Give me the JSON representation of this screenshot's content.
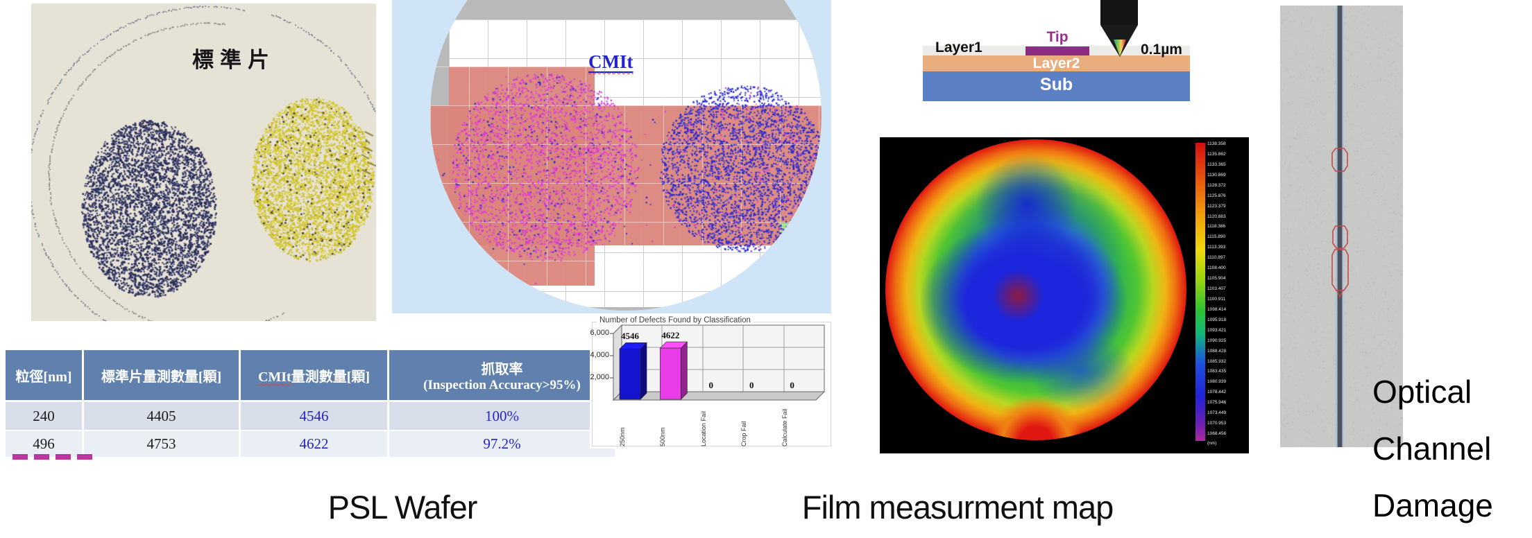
{
  "colors": {
    "table_header_bg": "#6080ae",
    "panel_light_blue": "#cfe4f6",
    "wafer_gray": "#b9b9b9",
    "scan_salmon": "#da867c",
    "scan_green": "#a5e395",
    "magenta_defect": "#e03ddd",
    "blue_defect": "#2626cf",
    "tip_purple": "#8e2b85",
    "layer2_tan": "#e9ad7e",
    "sub_blue": "#5b80c6"
  },
  "psl_photo": {
    "label": "標準片"
  },
  "cmit_map": {
    "title": "CMIt"
  },
  "comparison_table": {
    "col1": "粒徑[nm]",
    "col2": "標準片量測數量[顆]",
    "col3_em": "CMIt",
    "col3_rest": "量測數量[顆]",
    "col4_line1": "抓取率",
    "col4_line2": "(Inspection Accuracy>95%)",
    "rows": [
      {
        "cells": [
          "240",
          "4405",
          "4546",
          "100%"
        ]
      },
      {
        "cells": [
          "496",
          "4753",
          "4622",
          "97.2%"
        ]
      }
    ]
  },
  "chart_data": [
    {
      "type": "bar",
      "title": "Number of Defects Found by Classification",
      "categories": [
        "250nm",
        "500nm",
        "Location Fail",
        "Crop Fail",
        "Calculate Fail"
      ],
      "values": [
        4546,
        4622,
        0,
        0,
        0
      ],
      "value_labels": [
        "4546",
        "4622",
        "0",
        "0",
        "0"
      ],
      "ytick_labels": [
        "6,000",
        "4,000",
        "2,000"
      ],
      "ylim": [
        0,
        6000
      ],
      "bar_colors": [
        "#1515cf",
        "#e83ce8"
      ],
      "style": "3d-bar",
      "legend": "none"
    },
    {
      "type": "heatmap",
      "title": "Film measurment map",
      "shape": "wafer-circle",
      "palette": "rainbow-high-red-low-purple",
      "colorbar_ticks": [
        "1138.358",
        "1135.862",
        "1133.365",
        "1130.869",
        "1128.372",
        "1125.876",
        "1123.379",
        "1120.883",
        "1118.386",
        "1115.890",
        "1113.393",
        "1110.897",
        "1108.400",
        "1105.904",
        "1103.407",
        "1100.911",
        "1098.414",
        "1095.918",
        "1093.421",
        "1090.925",
        "1088.428",
        "1085.932",
        "1083.435",
        "1080.939",
        "1078.442",
        "1075.946",
        "1073.449",
        "1070.953",
        "1068.456"
      ],
      "colorbar_unit": "(nm)"
    }
  ],
  "tip_diagram": {
    "layer1": "Layer1",
    "tip": "Tip",
    "thickness": "0.1µm",
    "layer2": "Layer2",
    "sub": "Sub"
  },
  "captions": {
    "psl": "PSL Wafer",
    "film": "Film measurment map",
    "optical": "Optical Channel Damage"
  }
}
